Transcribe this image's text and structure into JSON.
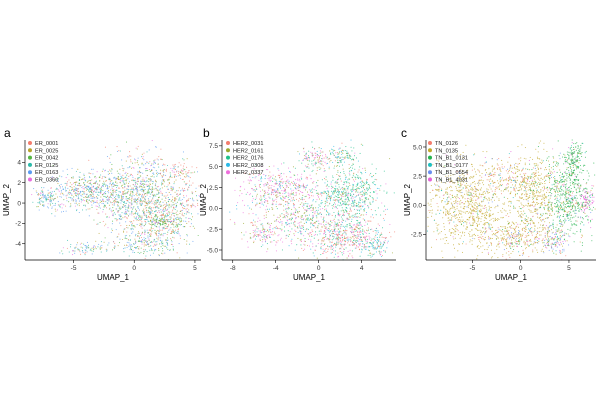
{
  "panel_letters": [
    "a",
    "b",
    "c"
  ],
  "chart_data": [
    {
      "type": "scatter",
      "panel": "a",
      "xlabel": "UMAP_1",
      "ylabel": "UMAP_2",
      "xlim": [
        -9,
        5.5
      ],
      "ylim": [
        -5.6,
        6.2
      ],
      "xticks": [
        -5,
        0,
        5
      ],
      "yticks": [
        -4,
        -2,
        0,
        2,
        4
      ],
      "legend": "top-left",
      "grid": false,
      "series": [
        {
          "name": "ER_0001",
          "color": "#f37d6e"
        },
        {
          "name": "ER_0025",
          "color": "#b7a22c"
        },
        {
          "name": "ER_0042",
          "color": "#52b541"
        },
        {
          "name": "ER_0125",
          "color": "#2ab9a8"
        },
        {
          "name": "ER_0163",
          "color": "#5b9bf2"
        },
        {
          "name": "ER_0360",
          "color": "#e86ce0"
        }
      ],
      "clusters": [
        {
          "x": 0.8,
          "y": 1.0,
          "sx": 1.8,
          "sy": 2.0,
          "n": 900,
          "w": [
            1,
            1,
            1,
            1,
            1.2,
            0.4
          ]
        },
        {
          "x": 2.2,
          "y": -1.6,
          "sx": 1.2,
          "sy": 1.2,
          "n": 380,
          "w": [
            1.4,
            1,
            1.2,
            1,
            1,
            0.3
          ]
        },
        {
          "x": -4.5,
          "y": 1.2,
          "sx": 1.4,
          "sy": 0.9,
          "n": 380,
          "w": [
            0.5,
            0.8,
            0.8,
            1.2,
            1.6,
            0.6
          ]
        },
        {
          "x": -1.8,
          "y": 0.8,
          "sx": 1.2,
          "sy": 1.2,
          "n": 240,
          "w": [
            0.6,
            1,
            1,
            1,
            1.3,
            0.3
          ]
        },
        {
          "x": -7.3,
          "y": 0.5,
          "sx": 0.5,
          "sy": 0.5,
          "n": 90,
          "w": [
            0.3,
            0.5,
            0.5,
            1.5,
            1.6,
            0.8
          ]
        },
        {
          "x": -4.2,
          "y": -4.5,
          "sx": 0.8,
          "sy": 0.3,
          "n": 70,
          "w": [
            0.4,
            0.8,
            0.6,
            1.2,
            1.5,
            0.4
          ]
        },
        {
          "x": 0.7,
          "y": -4.0,
          "sx": 1.8,
          "sy": 0.6,
          "n": 200,
          "w": [
            0.9,
            0.8,
            1.3,
            1,
            1.5,
            0.3
          ]
        },
        {
          "x": 2.1,
          "y": -1.8,
          "sx": 0.3,
          "sy": 0.3,
          "n": 50,
          "w": [
            0,
            0.4,
            2.5,
            0,
            0.2,
            0
          ]
        },
        {
          "x": 3.8,
          "y": 3.2,
          "sx": 0.6,
          "sy": 0.4,
          "n": 60,
          "w": [
            2,
            0.4,
            0.3,
            0.4,
            0.6,
            0.2
          ]
        },
        {
          "x": 4.3,
          "y": 0.3,
          "sx": 0.4,
          "sy": 1.3,
          "n": 60,
          "w": [
            1.8,
            0.5,
            0.5,
            0.4,
            0.7,
            0.3
          ]
        }
      ]
    },
    {
      "type": "scatter",
      "panel": "b",
      "xlabel": "UMAP_1",
      "ylabel": "UMAP_2",
      "xlim": [
        -9,
        7.2
      ],
      "ylim": [
        -6.2,
        8.2
      ],
      "xticks": [
        -8,
        -4,
        0,
        4
      ],
      "yticks": [
        -5.0,
        -2.5,
        0.0,
        2.5,
        5.0,
        7.5
      ],
      "legend": "top-left",
      "grid": false,
      "series": [
        {
          "name": "HER2_0031",
          "color": "#f37d6e"
        },
        {
          "name": "HER2_0161",
          "color": "#9aa82c"
        },
        {
          "name": "HER2_0176",
          "color": "#1fc08a"
        },
        {
          "name": "HER2_0308",
          "color": "#2bb8e6"
        },
        {
          "name": "HER2_0337",
          "color": "#ee6edc"
        }
      ],
      "clusters": [
        {
          "x": 2.8,
          "y": 1.5,
          "sx": 1.5,
          "sy": 2.0,
          "n": 650,
          "w": [
            0.15,
            0.25,
            1.0,
            0.2,
            0.15
          ]
        },
        {
          "x": 2.5,
          "y": -3.5,
          "sx": 2.0,
          "sy": 1.2,
          "n": 500,
          "w": [
            0.9,
            0.25,
            0.55,
            0.35,
            0.55
          ]
        },
        {
          "x": -3.5,
          "y": 2.5,
          "sx": 1.8,
          "sy": 1.2,
          "n": 380,
          "w": [
            0.25,
            0.25,
            0.15,
            0.2,
            1.0
          ]
        },
        {
          "x": -2.0,
          "y": -1.0,
          "sx": 2.2,
          "sy": 1.5,
          "n": 420,
          "w": [
            0.3,
            0.8,
            0.45,
            0.3,
            0.6
          ]
        },
        {
          "x": -0.3,
          "y": 6.0,
          "sx": 0.8,
          "sy": 0.7,
          "n": 120,
          "w": [
            0.3,
            0.4,
            0.5,
            0.3,
            0.6
          ]
        },
        {
          "x": 2.3,
          "y": 6.3,
          "sx": 0.7,
          "sy": 0.6,
          "n": 90,
          "w": [
            0.2,
            0.3,
            1.0,
            0.4,
            0.3
          ]
        },
        {
          "x": 5.3,
          "y": -4.5,
          "sx": 0.7,
          "sy": 0.6,
          "n": 80,
          "w": [
            0.3,
            0.4,
            0.5,
            1.0,
            0.3
          ]
        },
        {
          "x": -5.0,
          "y": -3.2,
          "sx": 1.2,
          "sy": 0.7,
          "n": 110,
          "w": [
            0.5,
            0.5,
            0.2,
            0.2,
            1.0
          ]
        }
      ]
    },
    {
      "type": "scatter",
      "panel": "c",
      "xlabel": "UMAP_1",
      "ylabel": "UMAP_2",
      "xlim": [
        -9.8,
        7.8
      ],
      "ylim": [
        -4.7,
        5.6
      ],
      "xticks": [
        -5,
        0,
        5
      ],
      "yticks": [
        -2.5,
        0.0,
        2.5,
        5.0
      ],
      "legend": "top-left",
      "grid": false,
      "series": [
        {
          "name": "TN_0126",
          "color": "#f37d6e"
        },
        {
          "name": "TN_0135",
          "color": "#c2a82b"
        },
        {
          "name": "TN_B1_0131",
          "color": "#22b24c"
        },
        {
          "name": "TN_B1_0177",
          "color": "#1fbfbf"
        },
        {
          "name": "TN_B1_0554",
          "color": "#6a8ef0"
        },
        {
          "name": "TN_B1_4031",
          "color": "#e562d9"
        }
      ],
      "clusters": [
        {
          "x": -5.5,
          "y": 0.0,
          "sx": 2.0,
          "sy": 1.8,
          "n": 850,
          "w": [
            0.06,
            1.0,
            0.03,
            0.03,
            0.03,
            0.03
          ]
        },
        {
          "x": 1.5,
          "y": 1.0,
          "sx": 1.4,
          "sy": 1.8,
          "n": 550,
          "w": [
            0.06,
            1.0,
            0.1,
            0.03,
            0.03,
            0.03
          ]
        },
        {
          "x": 5.0,
          "y": 0.8,
          "sx": 1.2,
          "sy": 1.8,
          "n": 550,
          "w": [
            0.05,
            0.1,
            1.0,
            0.05,
            0.05,
            0.06
          ]
        },
        {
          "x": 5.5,
          "y": 4.0,
          "sx": 0.5,
          "sy": 0.8,
          "n": 140,
          "w": [
            0.05,
            0.1,
            1.0,
            0.05,
            0.05,
            0.05
          ]
        },
        {
          "x": 6.8,
          "y": 0.3,
          "sx": 0.35,
          "sy": 0.6,
          "n": 90,
          "w": [
            0.05,
            0.1,
            0.2,
            0.05,
            0.05,
            1.0
          ]
        },
        {
          "x": -0.5,
          "y": -2.8,
          "sx": 2.0,
          "sy": 0.8,
          "n": 350,
          "w": [
            0.3,
            1.0,
            0.1,
            0.1,
            0.1,
            0.1
          ]
        },
        {
          "x": 3.5,
          "y": -3.0,
          "sx": 0.8,
          "sy": 0.6,
          "n": 120,
          "w": [
            0.2,
            0.4,
            0.3,
            0.4,
            0.6,
            0.5
          ]
        },
        {
          "x": -1.5,
          "y": 2.5,
          "sx": 1.5,
          "sy": 0.8,
          "n": 150,
          "w": [
            0.4,
            0.6,
            0.05,
            0.1,
            0.1,
            0.15
          ]
        }
      ]
    }
  ]
}
